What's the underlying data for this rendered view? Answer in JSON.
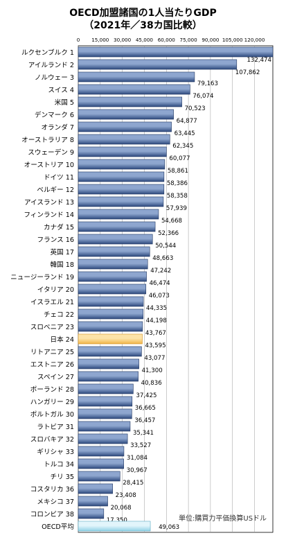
{
  "chart_data": {
    "type": "bar",
    "orientation": "horizontal",
    "title": "OECD加盟諸国の1人当たりGDP",
    "subtitle": "（2021年／38カ国比較）",
    "unit_note": "単位:購買力平価換算USドル",
    "x_ticks": [
      "0",
      "15,000",
      "30,000",
      "45,000",
      "60,000",
      "75,000",
      "90,000",
      "105,000",
      "120,000"
    ],
    "xlim": [
      0,
      132474
    ],
    "grid": true,
    "categories": [
      "ルクセンブルク 1",
      "アイルランド 2",
      "ノルウェー 3",
      "スイス 4",
      "米国 5",
      "デンマーク 6",
      "オランダ 7",
      "オーストラリア 8",
      "スウェーデン 9",
      "オーストリア 10",
      "ドイツ 11",
      "ベルギー 12",
      "アイスランド 13",
      "フィンランド 14",
      "カナダ 15",
      "フランス 16",
      "英国 17",
      "韓国 18",
      "ニュージーランド 19",
      "イタリア 20",
      "イスラエル 21",
      "チェコ 22",
      "スロベニア 23",
      "日本 24",
      "リトアニア 25",
      "エストニア 26",
      "スペイン 27",
      "ポーランド 28",
      "ハンガリー 29",
      "ポルトガル 30",
      "ラトビア 31",
      "スロバキア 32",
      "ギリシャ 33",
      "トルコ 34",
      "チリ 35",
      "コスタリカ 36",
      "メキシコ 37",
      "コロンビア 38",
      "OECD平均"
    ],
    "values": [
      132474,
      107862,
      79163,
      76074,
      70523,
      64877,
      63445,
      62345,
      60077,
      58861,
      58386,
      58358,
      57939,
      54668,
      52366,
      50544,
      48663,
      47242,
      46474,
      46073,
      44335,
      44198,
      43767,
      43595,
      43077,
      41300,
      40836,
      37425,
      36665,
      36457,
      35341,
      33527,
      31084,
      30967,
      28415,
      23408,
      20068,
      17350,
      49063
    ],
    "value_labels": [
      "132,474",
      "107,862",
      "79,163",
      "76,074",
      "70,523",
      "64,877",
      "63,445",
      "62,345",
      "60,077",
      "58,861",
      "58,386",
      "58,358",
      "57,939",
      "54,668",
      "52,366",
      "50,544",
      "48,663",
      "47,242",
      "46,474",
      "46,073",
      "44,335",
      "44,198",
      "43,767",
      "43,595",
      "43,077",
      "41,300",
      "40,836",
      "37,425",
      "36,665",
      "36,457",
      "35,341",
      "33,527",
      "31,084",
      "30,967",
      "28,415",
      "23,408",
      "20,068",
      "17,350",
      "49,063"
    ],
    "highlight": {
      "日本 24": "#f5c66a",
      "OECD平均": "#aee0ee"
    },
    "default_bar_color": "#4a6698"
  }
}
